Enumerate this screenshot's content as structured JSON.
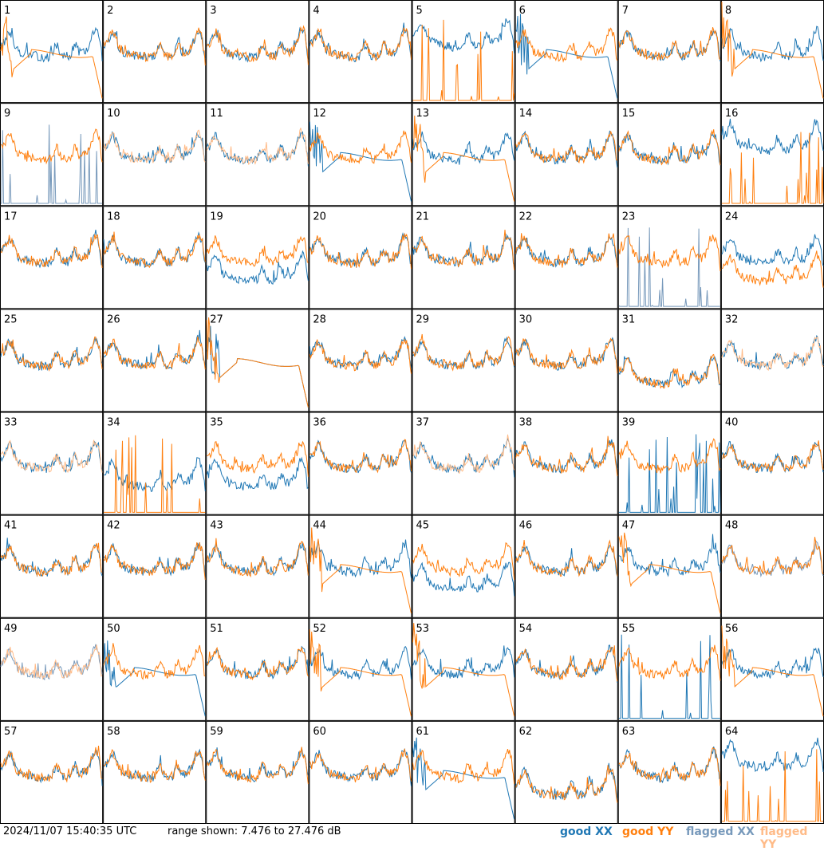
{
  "chart_data": {
    "type": "line",
    "panels": [
      "1",
      "2",
      "3",
      "4",
      "5",
      "6",
      "7",
      "8",
      "9",
      "10",
      "11",
      "12",
      "13",
      "14",
      "15",
      "16",
      "17",
      "18",
      "19",
      "20",
      "21",
      "22",
      "23",
      "24",
      "25",
      "26",
      "27",
      "28",
      "29",
      "30",
      "31",
      "32",
      "33",
      "34",
      "35",
      "36",
      "37",
      "38",
      "39",
      "40",
      "41",
      "42",
      "43",
      "44",
      "45",
      "46",
      "47",
      "48",
      "49",
      "50",
      "51",
      "52",
      "53",
      "54",
      "55",
      "56",
      "57",
      "58",
      "59",
      "60",
      "61",
      "62",
      "63",
      "64"
    ],
    "ylim": [
      7.476,
      27.476
    ],
    "ylabel_unit": "dB",
    "grid": false,
    "legend_placement": "bottom-right",
    "series": [
      {
        "name": "good XX",
        "color": "#1f77b4"
      },
      {
        "name": "good YY",
        "color": "#ff7f0e"
      },
      {
        "name": "flagged XX",
        "color": "#7799bb"
      },
      {
        "name": "flagged YY",
        "color": "#ffbb88"
      }
    ],
    "flagged_xx_panels": [
      "9",
      "23",
      "48",
      "49"
    ],
    "flagged_yy_panels": [
      "10",
      "11",
      "32",
      "33",
      "37",
      "49"
    ],
    "collapsed_yy_panels": [
      "1",
      "8",
      "13",
      "27",
      "44",
      "47",
      "52",
      "53",
      "56"
    ],
    "collapsed_xx_panels": [
      "6",
      "12",
      "27",
      "50",
      "61"
    ],
    "low_xx_panels": [
      "19",
      "31",
      "34",
      "35",
      "45",
      "62"
    ],
    "low_yy_panels": [
      "24",
      "31",
      "62"
    ]
  },
  "footer": {
    "timestamp": "2024/11/07 15:40:35 UTC",
    "range_text": "range shown: 7.476 to 27.476 dB",
    "legend": [
      {
        "label": "good XX",
        "color": "#1f77b4"
      },
      {
        "label": "good YY",
        "color": "#ff7f0e"
      },
      {
        "label": "flagged XX",
        "color": "#7799bb"
      },
      {
        "label": "flagged YY",
        "color": "#ffbb88"
      }
    ]
  }
}
